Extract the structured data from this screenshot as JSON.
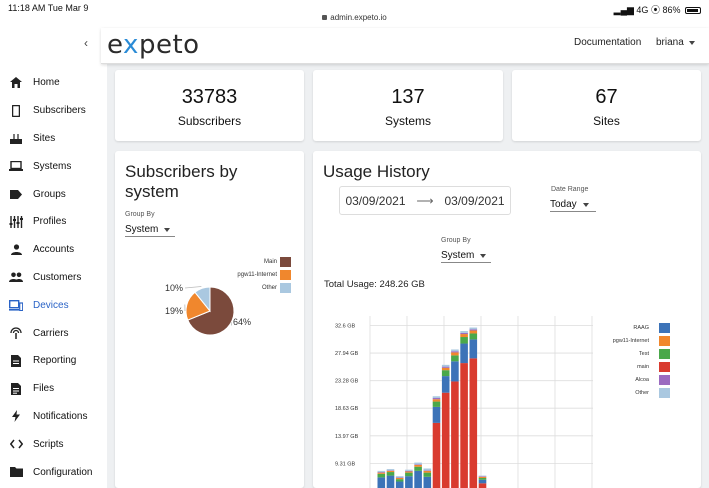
{
  "status_bar": {
    "time": "11:18 AM  Tue Mar 9",
    "url": "admin.expeto.io",
    "network": "4G",
    "battery": "86%"
  },
  "brand": {
    "pre": "e",
    "x": "x",
    "post": "peto"
  },
  "topbar": {
    "documentation": "Documentation",
    "user": "briana"
  },
  "sidebar": {
    "items": [
      {
        "label": "Home",
        "icon": "home-icon"
      },
      {
        "label": "Subscribers",
        "icon": "phone-icon"
      },
      {
        "label": "Sites",
        "icon": "router-icon"
      },
      {
        "label": "Systems",
        "icon": "laptop-icon"
      },
      {
        "label": "Groups",
        "icon": "label-icon"
      },
      {
        "label": "Profiles",
        "icon": "sliders-icon"
      },
      {
        "label": "Accounts",
        "icon": "person-icon"
      },
      {
        "label": "Customers",
        "icon": "people-icon"
      },
      {
        "label": "Devices",
        "icon": "devices-icon"
      },
      {
        "label": "Carriers",
        "icon": "antenna-icon"
      },
      {
        "label": "Reporting",
        "icon": "document-icon"
      },
      {
        "label": "Files",
        "icon": "file-icon"
      },
      {
        "label": "Notifications",
        "icon": "bolt-icon"
      },
      {
        "label": "Scripts",
        "icon": "code-icon"
      },
      {
        "label": "Configuration",
        "icon": "folder-icon"
      }
    ]
  },
  "kpis": [
    {
      "value": "33783",
      "label": "Subscribers"
    },
    {
      "value": "137",
      "label": "Systems"
    },
    {
      "value": "67",
      "label": "Sites"
    }
  ],
  "subscribers_card": {
    "title": "Subscribers by system",
    "group_by_label": "Group By",
    "group_by_value": "System"
  },
  "usage_card": {
    "title": "Usage History",
    "date_from": "03/09/2021",
    "date_to": "03/09/2021",
    "date_range_label": "Date Range",
    "date_range_value": "Today",
    "group_by_label": "Group By",
    "group_by_value": "System",
    "total_usage": "Total Usage: 248.26 GB"
  },
  "colors": {
    "accent": "#2a63c6",
    "main": "#7b4a3c",
    "pgw": "#f0872d",
    "other": "#aac8e0"
  },
  "chart_data": [
    {
      "type": "pie",
      "categories": [
        "Main",
        "pgw11-Internet",
        "Other"
      ],
      "values": [
        64,
        19,
        10
      ],
      "data_labels": [
        "64%",
        "19%",
        "10%"
      ],
      "legend": "top-right",
      "colors": [
        "#7b4a3c",
        "#f0872d",
        "#aac8e0"
      ]
    },
    {
      "type": "bar",
      "stacked": true,
      "series_order": [
        "RAAG",
        "pgw11-Internet",
        "Test",
        "main",
        "Alcoa",
        "Other"
      ],
      "colors": [
        "#3c73b8",
        "#f0872d",
        "#4aa84a",
        "#d93b2f",
        "#9b6bc0",
        "#aac8e0"
      ],
      "ytick_labels": [
        "32.6 GB",
        "27.94 GB",
        "23.28 GB",
        "18.63 GB",
        "13.97 GB",
        "9.31 GB"
      ],
      "yticks": [
        32.6,
        27.94,
        23.28,
        18.63,
        13.97,
        9.31
      ],
      "ylim": [
        4.65,
        34.2
      ],
      "legend": "right",
      "grid": true,
      "bars": [
        {
          "RAAG": 2.3,
          "pgw11-Internet": 0.2,
          "Test": 0.6,
          "main": 0,
          "Alcoa": 0.1,
          "Other": 0.2
        },
        {
          "RAAG": 2.6,
          "pgw11-Internet": 0.2,
          "Test": 0.6,
          "main": 0,
          "Alcoa": 0.1,
          "Other": 0.2
        },
        {
          "RAAG": 1.6,
          "pgw11-Internet": 0.2,
          "Test": 0.4,
          "main": 0,
          "Alcoa": 0.1,
          "Other": 0.2
        },
        {
          "RAAG": 2.5,
          "pgw11-Internet": 0.2,
          "Test": 0.6,
          "main": 0,
          "Alcoa": 0.1,
          "Other": 0.2
        },
        {
          "RAAG": 3.4,
          "pgw11-Internet": 0.3,
          "Test": 0.7,
          "main": 0,
          "Alcoa": 0.1,
          "Other": 0.3
        },
        {
          "RAAG": 2.4,
          "pgw11-Internet": 0.3,
          "Test": 0.7,
          "main": 0,
          "Alcoa": 0.1,
          "Other": 0.3
        },
        {
          "RAAG": 2.7,
          "pgw11-Internet": 0.4,
          "Test": 0.9,
          "main": 11.5,
          "Alcoa": 0.2,
          "Other": 0.3
        },
        {
          "RAAG": 2.8,
          "pgw11-Internet": 0.4,
          "Test": 1.0,
          "main": 16.6,
          "Alcoa": 0.2,
          "Other": 0.3
        },
        {
          "RAAG": 3.4,
          "pgw11-Internet": 0.5,
          "Test": 1.0,
          "main": 18.5,
          "Alcoa": 0.2,
          "Other": 0.3
        },
        {
          "RAAG": 3.3,
          "pgw11-Internet": 0.5,
          "Test": 1.1,
          "main": 21.6,
          "Alcoa": 0.2,
          "Other": 0.3
        },
        {
          "RAAG": 3.2,
          "pgw11-Internet": 0.5,
          "Test": 1.0,
          "main": 22.4,
          "Alcoa": 0.2,
          "Other": 0.3
        },
        {
          "RAAG": 0.6,
          "pgw11-Internet": 0.2,
          "Test": 0.3,
          "main": 1.3,
          "Alcoa": 0.1,
          "Other": 0.1
        }
      ]
    }
  ]
}
